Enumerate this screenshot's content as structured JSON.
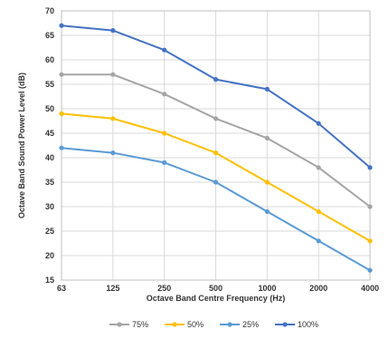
{
  "chart_data": {
    "type": "line",
    "title": "",
    "xlabel": "Octave Band Centre Frequency (Hz)",
    "ylabel": "Octave Band Sound Power Level (dB)",
    "categories": [
      "63",
      "125",
      "250",
      "500",
      "1000",
      "2000",
      "4000"
    ],
    "ylim": [
      15,
      70
    ],
    "yticks": [
      15,
      20,
      25,
      30,
      35,
      40,
      45,
      50,
      55,
      60,
      65,
      70
    ],
    "grid": true,
    "legend_position": "bottom",
    "series": [
      {
        "name": "75%",
        "color": "#a5a5a5",
        "values": [
          57,
          57,
          53,
          48,
          44,
          38,
          30
        ]
      },
      {
        "name": "50%",
        "color": "#ffc000",
        "values": [
          49,
          48,
          45,
          41,
          35,
          29,
          23
        ]
      },
      {
        "name": "25%",
        "color": "#5b9bd5",
        "values": [
          42,
          41,
          39,
          35,
          29,
          23,
          17
        ]
      },
      {
        "name": "100%",
        "color": "#4472c4",
        "values": [
          67,
          66,
          62,
          56,
          54,
          47,
          38
        ]
      }
    ]
  }
}
